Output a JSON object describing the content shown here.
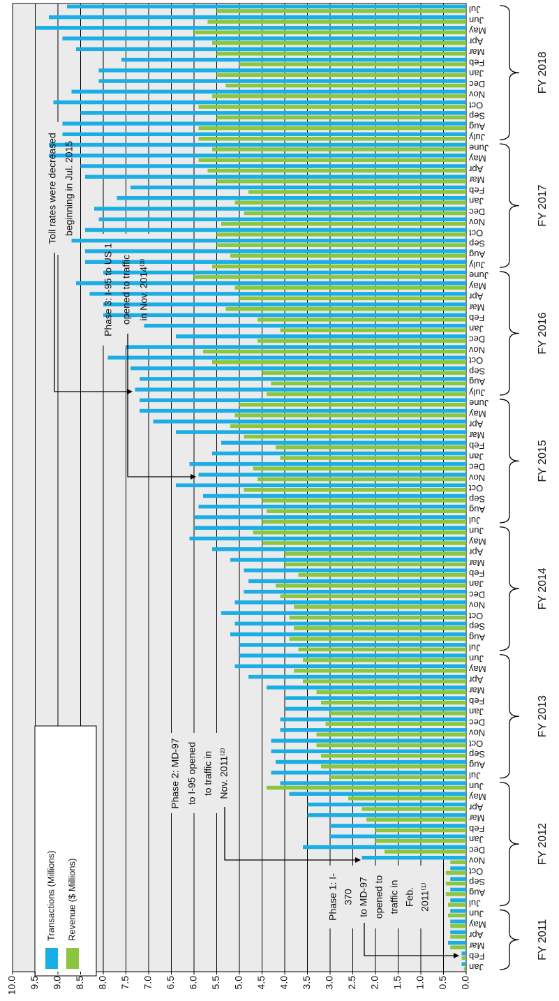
{
  "chart_data": {
    "type": "bar",
    "orientation": "rotated",
    "category_groups": [
      {
        "label": "FY 2011",
        "categories": [
          "Jan",
          "Feb",
          "Mar",
          "Apr",
          "May",
          "Jun"
        ]
      },
      {
        "label": "FY 2012",
        "categories": [
          "Jul",
          "Aug",
          "Sep",
          "Oct",
          "Nov",
          "Dec",
          "Jan",
          "Feb",
          "Mar",
          "Apr",
          "May",
          "Jun"
        ]
      },
      {
        "label": "FY 2013",
        "categories": [
          "Jul",
          "Aug",
          "Sep",
          "Oct",
          "Nov",
          "Dec",
          "Jan",
          "Feb",
          "Mar",
          "Apr",
          "May",
          "Jun"
        ]
      },
      {
        "label": "FY 2014",
        "categories": [
          "Jul",
          "Aug",
          "Sep",
          "Oct",
          "Nov",
          "Dec",
          "Jan",
          "Feb",
          "Mar",
          "Apr",
          "May",
          "Jun"
        ]
      },
      {
        "label": "FY 2015",
        "categories": [
          "Jul",
          "Aug",
          "Sep",
          "Oct",
          "Nov",
          "Dec",
          "Jan",
          "Feb",
          "Mar",
          "Apr",
          "May",
          "June"
        ]
      },
      {
        "label": "FY 2016",
        "categories": [
          "July",
          "Aug",
          "Sep",
          "Oct",
          "Nov",
          "Dec",
          "Jan",
          "Feb",
          "Mar",
          "Apr",
          "May",
          "June"
        ]
      },
      {
        "label": "FY 2017",
        "categories": [
          "July",
          "Aug",
          "Sep",
          "Oct",
          "Nov",
          "Dec",
          "Jan",
          "Feb",
          "Mar",
          "Apr",
          "May",
          "June"
        ]
      },
      {
        "label": "FY 2018",
        "categories": [
          "July",
          "Aug",
          "Sep",
          "Oct",
          "Nov",
          "Dec",
          "Jan",
          "Feb",
          "Mar",
          "Apr",
          "May",
          "Jun",
          "Jul"
        ]
      }
    ],
    "series": [
      {
        "name": "Transactions (Millions)",
        "color": "#1aaee6",
        "values": [
          0.1,
          0.1,
          0.4,
          0.35,
          0.35,
          0.35,
          0.35,
          0.35,
          0.35,
          0.35,
          2.3,
          3.6,
          3.0,
          3.0,
          3.5,
          3.5,
          3.9,
          4.1,
          4.3,
          4.2,
          4.3,
          4.3,
          4.1,
          4.1,
          4.0,
          4.0,
          4.4,
          4.8,
          5.1,
          5.0,
          5.0,
          5.2,
          5.1,
          5.4,
          5.1,
          4.9,
          4.8,
          4.9,
          5.2,
          5.6,
          6.1,
          6.0,
          6.0,
          5.9,
          5.8,
          6.4,
          5.9,
          6.1,
          5.6,
          5.4,
          6.4,
          6.9,
          7.2,
          7.2,
          7.3,
          7.2,
          7.4,
          7.9,
          7.5,
          6.4,
          7.1,
          8.0,
          8.0,
          8.3,
          8.6,
          8.0,
          8.4,
          8.4,
          8.7,
          8.4,
          8.1,
          8.2,
          7.7,
          7.4,
          8.4,
          8.5,
          9.2,
          9.2,
          8.9,
          8.9,
          8.5,
          9.1,
          8.7,
          8.1,
          8.1,
          7.6,
          8.6,
          8.9,
          9.5,
          9.2,
          8.8
        ]
      },
      {
        "name": "Revenue ($ Millions)",
        "color": "#8cc63f",
        "values": [
          0.05,
          0.1,
          0.35,
          0.35,
          0.35,
          0.4,
          0.4,
          0.45,
          0.45,
          0.45,
          0.35,
          1.8,
          2.0,
          2.0,
          2.2,
          2.3,
          2.6,
          4.4,
          3.0,
          3.2,
          3.2,
          3.3,
          3.3,
          3.1,
          3.0,
          3.2,
          3.3,
          3.6,
          3.8,
          3.6,
          3.7,
          3.9,
          3.8,
          3.9,
          3.8,
          4.1,
          4.2,
          3.7,
          4.0,
          4.0,
          4.5,
          4.7,
          4.5,
          4.4,
          4.5,
          4.9,
          4.6,
          4.7,
          4.1,
          4.2,
          4.9,
          5.2,
          5.1,
          5.0,
          4.4,
          4.3,
          4.5,
          5.6,
          5.8,
          4.6,
          4.1,
          4.6,
          5.3,
          5.0,
          5.1,
          6.0,
          5.6,
          5.2,
          5.5,
          5.5,
          5.4,
          4.9,
          5.1,
          4.8,
          5.5,
          5.7,
          5.9,
          5.6,
          5.9,
          5.9,
          5.5,
          5.9,
          5.6,
          5.3,
          5.5,
          5.0,
          5.5,
          5.6,
          6.0,
          5.7,
          5.5
        ]
      }
    ],
    "ylim": [
      0,
      10
    ],
    "yticks": [
      {
        "value": 0,
        "label": "0.0"
      },
      0.5,
      {
        "value": 1,
        "label": "1.0"
      },
      1.5,
      {
        "value": 2,
        "label": "2.0"
      },
      2.5,
      {
        "value": 3,
        "label": "3.0"
      },
      3.5,
      {
        "value": 4,
        "label": "4.0"
      },
      4.5,
      {
        "value": 5,
        "label": "5.0"
      },
      5.5,
      {
        "value": 6,
        "label": "6.0"
      },
      6.5,
      {
        "value": 7,
        "label": "7.0"
      },
      7.5,
      {
        "value": 8,
        "label": "8.0"
      },
      8.5,
      {
        "value": 9,
        "label": "9.0"
      },
      9.5,
      {
        "value": 10,
        "label": "10.0"
      }
    ],
    "grid": true,
    "legend": "bottom-left",
    "annotations": [
      {
        "lines": [
          "Toll rates were decreased",
          "beginning in Jul. 2015"
        ]
      },
      {
        "lines": [
          "Phase 3: I-95 to US 1",
          "opened to traffic",
          "in Nov. 2014⁽³⁾"
        ]
      },
      {
        "lines": [
          "Phase 2: MD-97",
          "to I-95 opened",
          "to traffic in",
          "Nov. 2011⁽²⁾"
        ]
      },
      {
        "lines": [
          "Phase 1: I-",
          "370",
          "to MD-97",
          "opened to",
          "traffic in",
          "Feb.",
          "2011⁽¹⁾"
        ]
      }
    ]
  }
}
